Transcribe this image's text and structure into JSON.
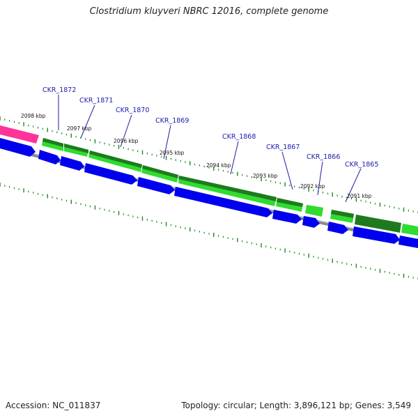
{
  "title": "Clostridium kluyveri NBRC 12016, complete genome",
  "accession_label": "Accession:",
  "accession": "NC_011837",
  "summary": "Topology: circular; Length: 3,896,121 bp; Genes: 3,549",
  "colors": {
    "forward_gene": "#2fdc2f",
    "forward_gene_dark": "#1f7a1f",
    "reverse_gene": "#0000ee",
    "highlight_gene": "#ff3399",
    "backbone": "#808080",
    "tick": "#1a8a1a",
    "label": "#1a1aa8"
  },
  "scale_ticks": [
    "2098 kbp",
    "2097 kbp",
    "2096 kbp",
    "2095 kbp",
    "2094 kbp",
    "2093 kbp",
    "2092 kbp",
    "2091 kbp"
  ],
  "gene_labels": [
    "CKR_1872",
    "CKR_1871",
    "CKR_1870",
    "CKR_1869",
    "CKR_1868",
    "CKR_1867",
    "CKR_1866",
    "CKR_1865"
  ]
}
